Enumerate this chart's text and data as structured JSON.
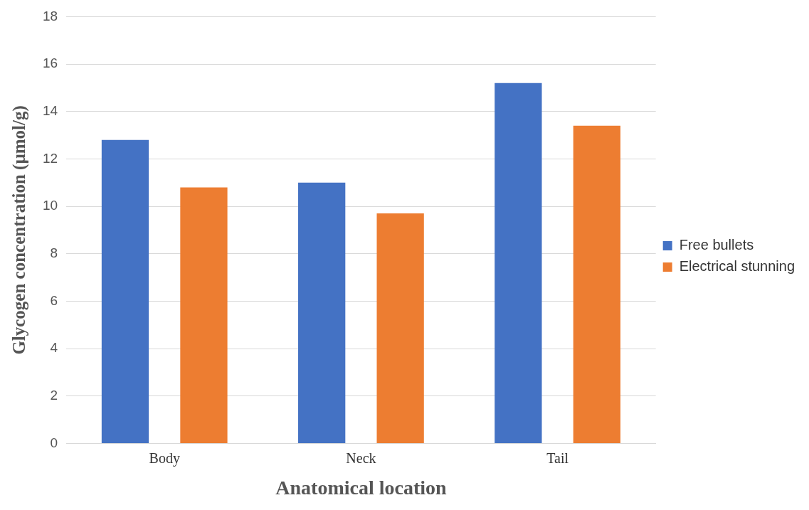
{
  "chart_data": {
    "type": "bar",
    "xlabel": "Anatomical location",
    "ylabel": "Glycogen concentration (µmol/g)",
    "categories": [
      "Body",
      "Neck",
      "Tail"
    ],
    "series": [
      {
        "name": "Free bullets",
        "color": "#4472c4",
        "values": [
          12.8,
          11.0,
          15.2
        ]
      },
      {
        "name": "Electrical stunning",
        "color": "#ed7d31",
        "values": [
          10.8,
          9.7,
          13.4
        ]
      }
    ],
    "ylim": [
      0,
      18
    ],
    "yticks": [
      0,
      2,
      4,
      6,
      8,
      10,
      12,
      14,
      16,
      18
    ],
    "grid": "y",
    "legend": "right"
  }
}
